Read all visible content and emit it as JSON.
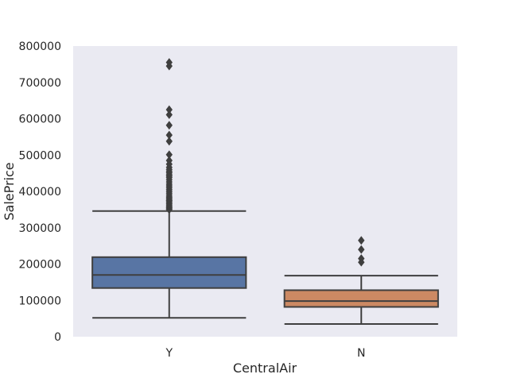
{
  "chart_data": {
    "type": "box",
    "xlabel": "CentralAir",
    "ylabel": "SalePrice",
    "ylim": [
      0,
      800000
    ],
    "yticks": [
      0,
      100000,
      200000,
      300000,
      400000,
      500000,
      600000,
      700000,
      800000
    ],
    "ytick_labels": [
      "0",
      "100000",
      "200000",
      "300000",
      "400000",
      "500000",
      "600000",
      "700000",
      "800000"
    ],
    "grid": false,
    "background": "#eaeaf2",
    "categories": [
      "Y",
      "N"
    ],
    "boxes": [
      {
        "category": "Y",
        "color": "#5875a4",
        "whisker_low": 52000,
        "q1": 134000,
        "median": 170000,
        "q3": 219000,
        "whisker_high": 346000,
        "outliers": [
          350000,
          352000,
          355000,
          358000,
          361000,
          365000,
          368000,
          372000,
          375000,
          378000,
          382000,
          385000,
          390000,
          395000,
          400000,
          405000,
          410000,
          415000,
          420000,
          426000,
          432000,
          438000,
          442000,
          446000,
          451000,
          455000,
          460000,
          466000,
          475000,
          485000,
          501000,
          538000,
          555000,
          582000,
          611000,
          625000,
          745000,
          755000
        ]
      },
      {
        "category": "N",
        "color": "#cc8963",
        "whisker_low": 34900,
        "q1": 82000,
        "median": 98000,
        "q3": 128000,
        "whisker_high": 168000,
        "outliers": [
          205000,
          215000,
          240000,
          265000
        ]
      }
    ]
  }
}
